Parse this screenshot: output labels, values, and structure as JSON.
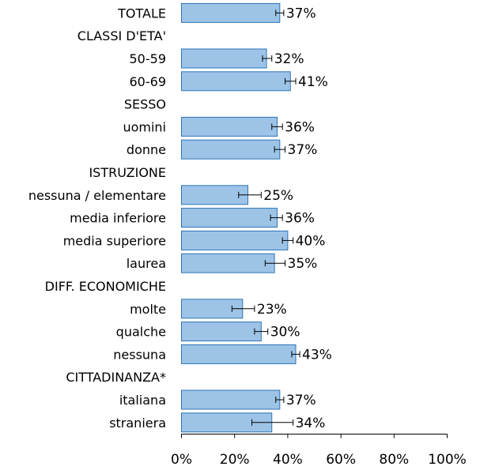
{
  "chart_data": {
    "type": "bar",
    "orientation": "horizontal",
    "title": "",
    "xlabel": "",
    "ylabel": "",
    "xlim": [
      0,
      100
    ],
    "x_ticks": [
      "0%",
      "20%",
      "40%",
      "60%",
      "80%",
      "100%"
    ],
    "value_suffix": "%",
    "grid": false,
    "legend": "none",
    "colors": {
      "bar_fill": "#9dc3e6",
      "bar_stroke": "#2e75b6"
    },
    "rows": [
      {
        "label": "TOTALE",
        "kind": "bar",
        "value": 37,
        "err_low": 35.5,
        "err_high": 38.5
      },
      {
        "label": "CLASSI D'ETA'",
        "kind": "group"
      },
      {
        "label": "50-59",
        "kind": "bar",
        "value": 32,
        "err_low": 30.5,
        "err_high": 34
      },
      {
        "label": "60-69",
        "kind": "bar",
        "value": 41,
        "err_low": 39,
        "err_high": 43
      },
      {
        "label": "SESSO",
        "kind": "group"
      },
      {
        "label": "uomini",
        "kind": "bar",
        "value": 36,
        "err_low": 34,
        "err_high": 38
      },
      {
        "label": "donne",
        "kind": "bar",
        "value": 37,
        "err_low": 35,
        "err_high": 39
      },
      {
        "label": "ISTRUZIONE",
        "kind": "group"
      },
      {
        "label": "nessuna / elementare",
        "kind": "bar",
        "value": 25,
        "err_low": 21.5,
        "err_high": 30
      },
      {
        "label": "media inferiore",
        "kind": "bar",
        "value": 36,
        "err_low": 33.5,
        "err_high": 38
      },
      {
        "label": "media superiore",
        "kind": "bar",
        "value": 40,
        "err_low": 38,
        "err_high": 42
      },
      {
        "label": "laurea",
        "kind": "bar",
        "value": 35,
        "err_low": 31.5,
        "err_high": 39
      },
      {
        "label": "DIFF. ECONOMICHE",
        "kind": "group"
      },
      {
        "label": "molte",
        "kind": "bar",
        "value": 23,
        "err_low": 19,
        "err_high": 27.5
      },
      {
        "label": "qualche",
        "kind": "bar",
        "value": 30,
        "err_low": 27.5,
        "err_high": 32.5
      },
      {
        "label": "nessuna",
        "kind": "bar",
        "value": 43,
        "err_low": 41.5,
        "err_high": 44.5
      },
      {
        "label": "CITTADINANZA*",
        "kind": "group"
      },
      {
        "label": "italiana",
        "kind": "bar",
        "value": 37,
        "err_low": 35.5,
        "err_high": 38.5
      },
      {
        "label": "straniera",
        "kind": "bar",
        "value": 34,
        "err_low": 26.5,
        "err_high": 42
      }
    ]
  }
}
